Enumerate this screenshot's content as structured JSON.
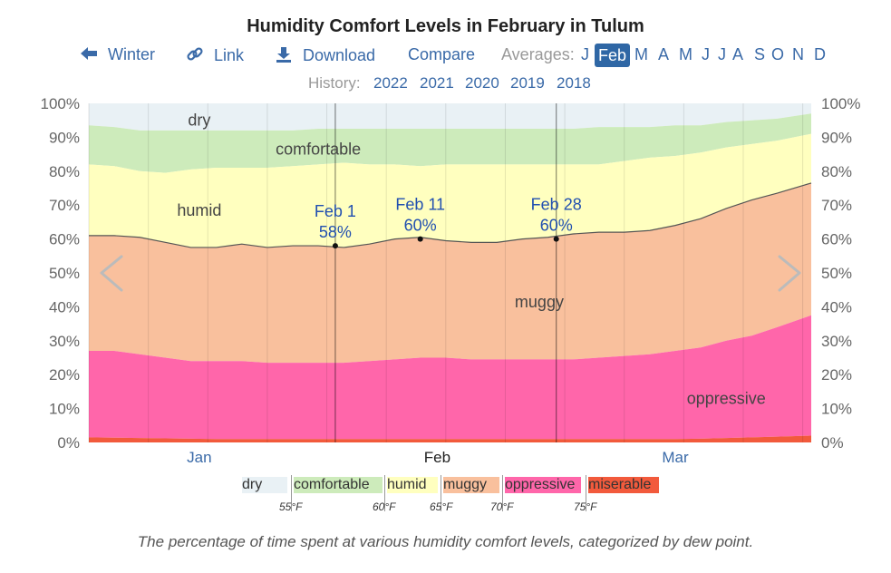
{
  "header": {
    "title": "Humidity Comfort Levels in February in Tulum"
  },
  "nav": {
    "back_label": "Winter",
    "link_label": "Link",
    "download_label": "Download",
    "compare_label": "Compare",
    "averages_label": "Averages:",
    "months": [
      "J",
      "Feb",
      "M",
      "A",
      "M",
      "J",
      "J",
      "A",
      "S",
      "O",
      "N",
      "D"
    ],
    "selected_month_index": 1
  },
  "history": {
    "label": "History:",
    "years": [
      "2022",
      "2021",
      "2020",
      "2019",
      "2018"
    ]
  },
  "chart_data": {
    "type": "area",
    "title": "Humidity Comfort Levels in February in Tulum",
    "xlabel": "",
    "ylabel": "",
    "ylim": [
      0,
      100
    ],
    "y_ticks": [
      "0%",
      "10%",
      "20%",
      "30%",
      "40%",
      "50%",
      "60%",
      "70%",
      "80%",
      "90%",
      "100%"
    ],
    "x_labels": [
      {
        "label": "Jan",
        "day": 31,
        "color": "#3a6aa8"
      },
      {
        "label": "Feb",
        "day": 59,
        "color": "#222222"
      },
      {
        "label": "Mar",
        "day": 87,
        "color": "#3a6aa8"
      }
    ],
    "x_domain": [
      18,
      103
    ],
    "days": [
      18,
      21,
      24,
      27,
      30,
      33,
      36,
      39,
      42,
      45,
      48,
      51,
      54,
      57,
      60,
      63,
      66,
      69,
      72,
      75,
      78,
      81,
      84,
      87,
      90,
      93,
      96,
      99,
      103
    ],
    "series": [
      {
        "name": "miserable",
        "color": "#f25a3c",
        "values": [
          1.5,
          1.4,
          1.3,
          1.2,
          1.1,
          1.0,
          1.0,
          1.0,
          1.0,
          1.0,
          1.0,
          1.0,
          1.0,
          1.0,
          1.0,
          1.0,
          1.0,
          1.0,
          1.0,
          1.0,
          1.0,
          1.0,
          1.0,
          1.0,
          1.1,
          1.3,
          1.5,
          1.7,
          2.0
        ]
      },
      {
        "name": "oppressive",
        "color": "#ff66aa",
        "values": [
          27,
          27,
          26,
          25,
          24,
          24,
          24,
          23.5,
          23.5,
          23.5,
          23.5,
          24,
          24.5,
          25,
          25,
          24.5,
          24.5,
          24.5,
          24.5,
          24.5,
          25,
          25.5,
          26,
          27,
          28,
          30,
          31.5,
          34,
          37.5
        ]
      },
      {
        "name": "muggy",
        "color": "#f9c09d",
        "values": [
          61,
          61,
          60.5,
          59,
          57.5,
          57.5,
          58.5,
          57.5,
          58,
          58,
          57.5,
          58.5,
          60,
          60.5,
          59.5,
          59,
          59,
          60,
          60.5,
          61.5,
          62,
          62,
          62.5,
          64,
          66,
          69,
          71.5,
          73.5,
          76.5
        ]
      },
      {
        "name": "humid",
        "color": "#ffffbf",
        "values": [
          82,
          81.5,
          80,
          79.5,
          80.5,
          81,
          81,
          81,
          81.5,
          82,
          82.5,
          82,
          82,
          81.5,
          82,
          82,
          82,
          82,
          82,
          82,
          82,
          83,
          84,
          84.5,
          85.5,
          87,
          88,
          89,
          91
        ]
      },
      {
        "name": "comfortable",
        "color": "#cdebbb",
        "values": [
          93.5,
          93,
          92,
          92,
          92,
          92,
          92,
          92,
          92,
          92.5,
          92.5,
          92.5,
          92.5,
          92.5,
          92.5,
          92.5,
          92.5,
          92.5,
          92.5,
          92.5,
          93,
          93,
          93,
          93.5,
          93.5,
          94.5,
          95,
          95.5,
          97
        ]
      },
      {
        "name": "dry",
        "color": "#e9f1f5",
        "values": [
          100,
          100,
          100,
          100,
          100,
          100,
          100,
          100,
          100,
          100,
          100,
          100,
          100,
          100,
          100,
          100,
          100,
          100,
          100,
          100,
          100,
          100,
          100,
          100,
          100,
          100,
          100,
          100,
          100
        ]
      }
    ],
    "region_labels": [
      {
        "name": "dry",
        "label": "dry",
        "day": 31,
        "pct": 95
      },
      {
        "name": "comfortable",
        "label": "comfortable",
        "day": 45,
        "pct": 86.5
      },
      {
        "name": "humid",
        "label": "humid",
        "day": 31,
        "pct": 68.5
      },
      {
        "name": "muggy",
        "label": "muggy",
        "day": 71,
        "pct": 41.5
      },
      {
        "name": "oppressive",
        "label": "oppressive",
        "day": 93,
        "pct": 13
      }
    ],
    "annotations": [
      {
        "date": "Feb 1",
        "value": "58%",
        "day": 47,
        "pct": 58
      },
      {
        "date": "Feb 11",
        "value": "60%",
        "day": 57,
        "pct": 60
      },
      {
        "date": "Feb 28",
        "value": "60%",
        "day": 73,
        "pct": 60
      }
    ],
    "month_boundaries": [
      47,
      73
    ],
    "legend": [
      {
        "label": "dry",
        "color": "#e9f1f5"
      },
      {
        "label": "comfortable",
        "color": "#cdebbb"
      },
      {
        "label": "humid",
        "color": "#ffffbf"
      },
      {
        "label": "muggy",
        "color": "#f9c09d"
      },
      {
        "label": "oppressive",
        "color": "#ff66aa"
      },
      {
        "label": "miserable",
        "color": "#f25a3c"
      }
    ],
    "thresholds": [
      "55°F",
      "60°F",
      "65°F",
      "70°F",
      "75°F"
    ]
  },
  "caption": "The percentage of time spent at various humidity comfort levels, categorized by dew point."
}
